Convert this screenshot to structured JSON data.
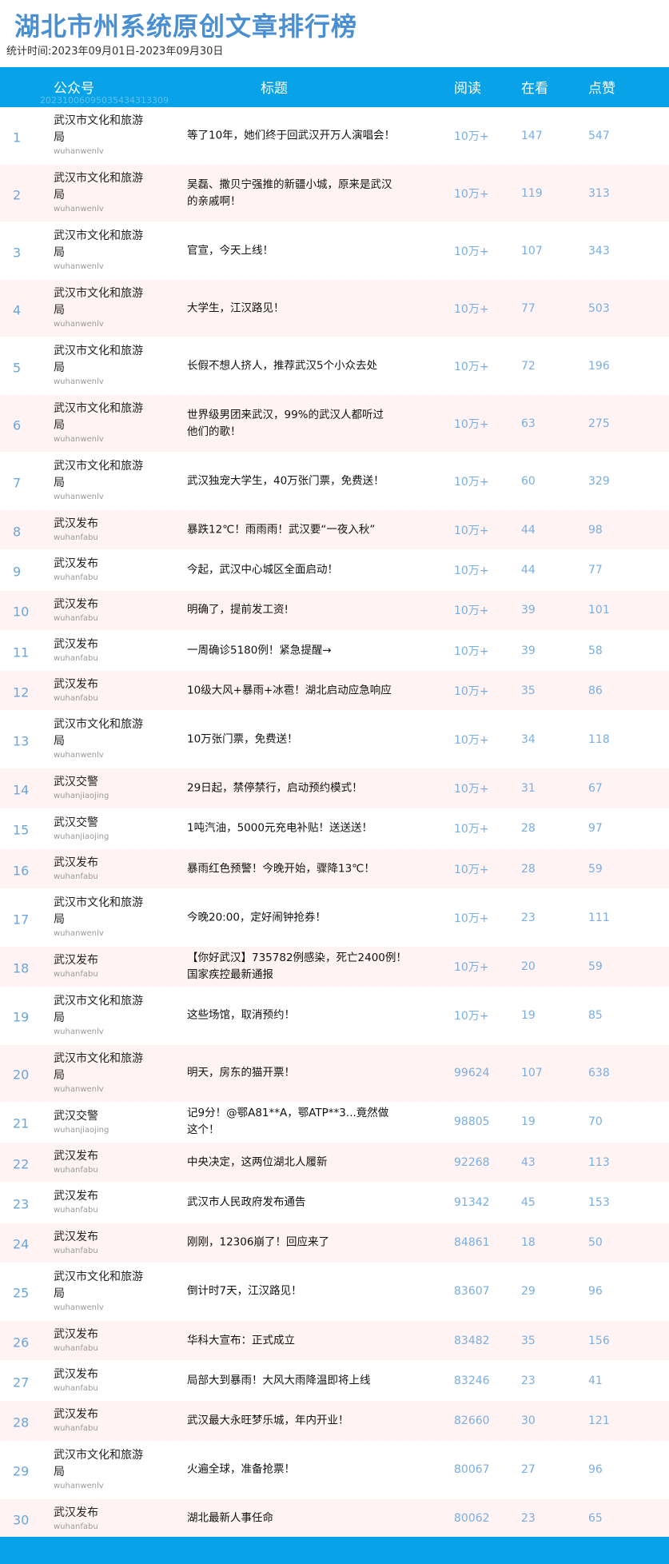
{
  "title": "湖北市州系统原创文章排行榜",
  "period": "统计时间:2023年09月01日-2023年09月30日",
  "header": {
    "account": "公众号",
    "title": "标题",
    "reads": "阅读",
    "watching": "在看",
    "likes": "点赞",
    "watermark": "20231006095035434313309"
  },
  "colors": {
    "accent": "#08a2e8",
    "title": "#4a8fd2",
    "numbers": "#7aaedf",
    "stripe": "#fff3f4"
  },
  "rows": [
    {
      "rank": "1",
      "account": "武汉市文化和旅游局",
      "id": "wuhanwenlv",
      "title": "等了10年，她们终于回武汉开万人演唱会！",
      "reads": "10万+",
      "watching": "147",
      "likes": "547"
    },
    {
      "rank": "2",
      "account": "武汉市文化和旅游局",
      "id": "wuhanwenlv",
      "title": "吴磊、撒贝宁强推的新疆小城，原来是武汉\n的亲戚啊！",
      "reads": "10万+",
      "watching": "119",
      "likes": "313"
    },
    {
      "rank": "3",
      "account": "武汉市文化和旅游局",
      "id": "wuhanwenlv",
      "title": "官宣，今天上线！",
      "reads": "10万+",
      "watching": "107",
      "likes": "343"
    },
    {
      "rank": "4",
      "account": "武汉市文化和旅游局",
      "id": "wuhanwenlv",
      "title": "大学生，江汉路见！",
      "reads": "10万+",
      "watching": "77",
      "likes": "503"
    },
    {
      "rank": "5",
      "account": "武汉市文化和旅游局",
      "id": "wuhanwenlv",
      "title": "长假不想人挤人，推荐武汉5个小众去处",
      "reads": "10万+",
      "watching": "72",
      "likes": "196"
    },
    {
      "rank": "6",
      "account": "武汉市文化和旅游局",
      "id": "wuhanwenlv",
      "title": "世界级男团来武汉，99%的武汉人都听过\n他们的歌！",
      "reads": "10万+",
      "watching": "63",
      "likes": "275"
    },
    {
      "rank": "7",
      "account": "武汉市文化和旅游局",
      "id": "wuhanwenlv",
      "title": "武汉独宠大学生，40万张门票，免费送！",
      "reads": "10万+",
      "watching": "60",
      "likes": "329"
    },
    {
      "rank": "8",
      "account": "武汉发布",
      "id": "wuhanfabu",
      "title": "暴跌12℃！雨雨雨！武汉要“一夜入秋”",
      "reads": "10万+",
      "watching": "44",
      "likes": "98"
    },
    {
      "rank": "9",
      "account": "武汉发布",
      "id": "wuhanfabu",
      "title": "今起，武汉中心城区全面启动！",
      "reads": "10万+",
      "watching": "44",
      "likes": "77"
    },
    {
      "rank": "10",
      "account": "武汉发布",
      "id": "wuhanfabu",
      "title": "明确了，提前发工资!",
      "reads": "10万+",
      "watching": "39",
      "likes": "101"
    },
    {
      "rank": "11",
      "account": "武汉发布",
      "id": "wuhanfabu",
      "title": "一周确诊5180例！紧急提醒→",
      "reads": "10万+",
      "watching": "39",
      "likes": "58"
    },
    {
      "rank": "12",
      "account": "武汉发布",
      "id": "wuhanfabu",
      "title": "10级大风+暴雨+冰雹！湖北启动应急响应",
      "reads": "10万+",
      "watching": "35",
      "likes": "86"
    },
    {
      "rank": "13",
      "account": "武汉市文化和旅游局",
      "id": "wuhanwenlv",
      "title": "10万张门票，免费送！",
      "reads": "10万+",
      "watching": "34",
      "likes": "118"
    },
    {
      "rank": "14",
      "account": "武汉交警",
      "id": "wuhanjiaojing",
      "title": "29日起，禁停禁行，启动预约模式！",
      "reads": "10万+",
      "watching": "31",
      "likes": "67"
    },
    {
      "rank": "15",
      "account": "武汉交警",
      "id": "wuhanjiaojing",
      "title": "1吨汽油，5000元充电补贴！送送送！",
      "reads": "10万+",
      "watching": "28",
      "likes": "97"
    },
    {
      "rank": "16",
      "account": "武汉发布",
      "id": "wuhanfabu",
      "title": "暴雨红色预警！今晚开始，骤降13℃！",
      "reads": "10万+",
      "watching": "28",
      "likes": "59"
    },
    {
      "rank": "17",
      "account": "武汉市文化和旅游局",
      "id": "wuhanwenlv",
      "title": "今晚20:00，定好闹钟抢券！",
      "reads": "10万+",
      "watching": "23",
      "likes": "111"
    },
    {
      "rank": "18",
      "account": "武汉发布",
      "id": "wuhanfabu",
      "title": "【你好武汉】735782例感染，死亡2400例！\n国家疾控最新通报",
      "reads": "10万+",
      "watching": "20",
      "likes": "59"
    },
    {
      "rank": "19",
      "account": "武汉市文化和旅游局",
      "id": "wuhanwenlv",
      "title": "这些场馆，取消预约！",
      "reads": "10万+",
      "watching": "19",
      "likes": "85"
    },
    {
      "rank": "20",
      "account": "武汉市文化和旅游局",
      "id": "wuhanwenlv",
      "title": "明天，房东的猫开票！",
      "reads": "99624",
      "watching": "107",
      "likes": "638"
    },
    {
      "rank": "21",
      "account": "武汉交警",
      "id": "wuhanjiaojing",
      "title": "记9分！@鄂A81**A，鄂ATP**3...竟然做\n这个！",
      "reads": "98805",
      "watching": "19",
      "likes": "70"
    },
    {
      "rank": "22",
      "account": "武汉发布",
      "id": "wuhanfabu",
      "title": "中央决定，这两位湖北人履新",
      "reads": "92268",
      "watching": "43",
      "likes": "113"
    },
    {
      "rank": "23",
      "account": "武汉发布",
      "id": "wuhanfabu",
      "title": "武汉市人民政府发布通告",
      "reads": "91342",
      "watching": "45",
      "likes": "153"
    },
    {
      "rank": "24",
      "account": "武汉发布",
      "id": "wuhanfabu",
      "title": "刚刚，12306崩了！回应来了",
      "reads": "84861",
      "watching": "18",
      "likes": "50"
    },
    {
      "rank": "25",
      "account": "武汉市文化和旅游局",
      "id": "wuhanwenlv",
      "title": "倒计时7天，江汉路见！",
      "reads": "83607",
      "watching": "29",
      "likes": "96"
    },
    {
      "rank": "26",
      "account": "武汉发布",
      "id": "wuhanfabu",
      "title": "华科大宣布：正式成立",
      "reads": "83482",
      "watching": "35",
      "likes": "156"
    },
    {
      "rank": "27",
      "account": "武汉发布",
      "id": "wuhanfabu",
      "title": "局部大到暴雨！大风大雨降温即将上线",
      "reads": "83246",
      "watching": "23",
      "likes": "41"
    },
    {
      "rank": "28",
      "account": "武汉发布",
      "id": "wuhanfabu",
      "title": "武汉最大永旺梦乐城，年内开业！",
      "reads": "82660",
      "watching": "30",
      "likes": "121"
    },
    {
      "rank": "29",
      "account": "武汉市文化和旅游局",
      "id": "wuhanwenlv",
      "title": "火遍全球，准备抢票！",
      "reads": "80067",
      "watching": "27",
      "likes": "96"
    },
    {
      "rank": "30",
      "account": "武汉发布",
      "id": "wuhanfabu",
      "title": "湖北最新人事任命",
      "reads": "80062",
      "watching": "23",
      "likes": "65"
    }
  ]
}
